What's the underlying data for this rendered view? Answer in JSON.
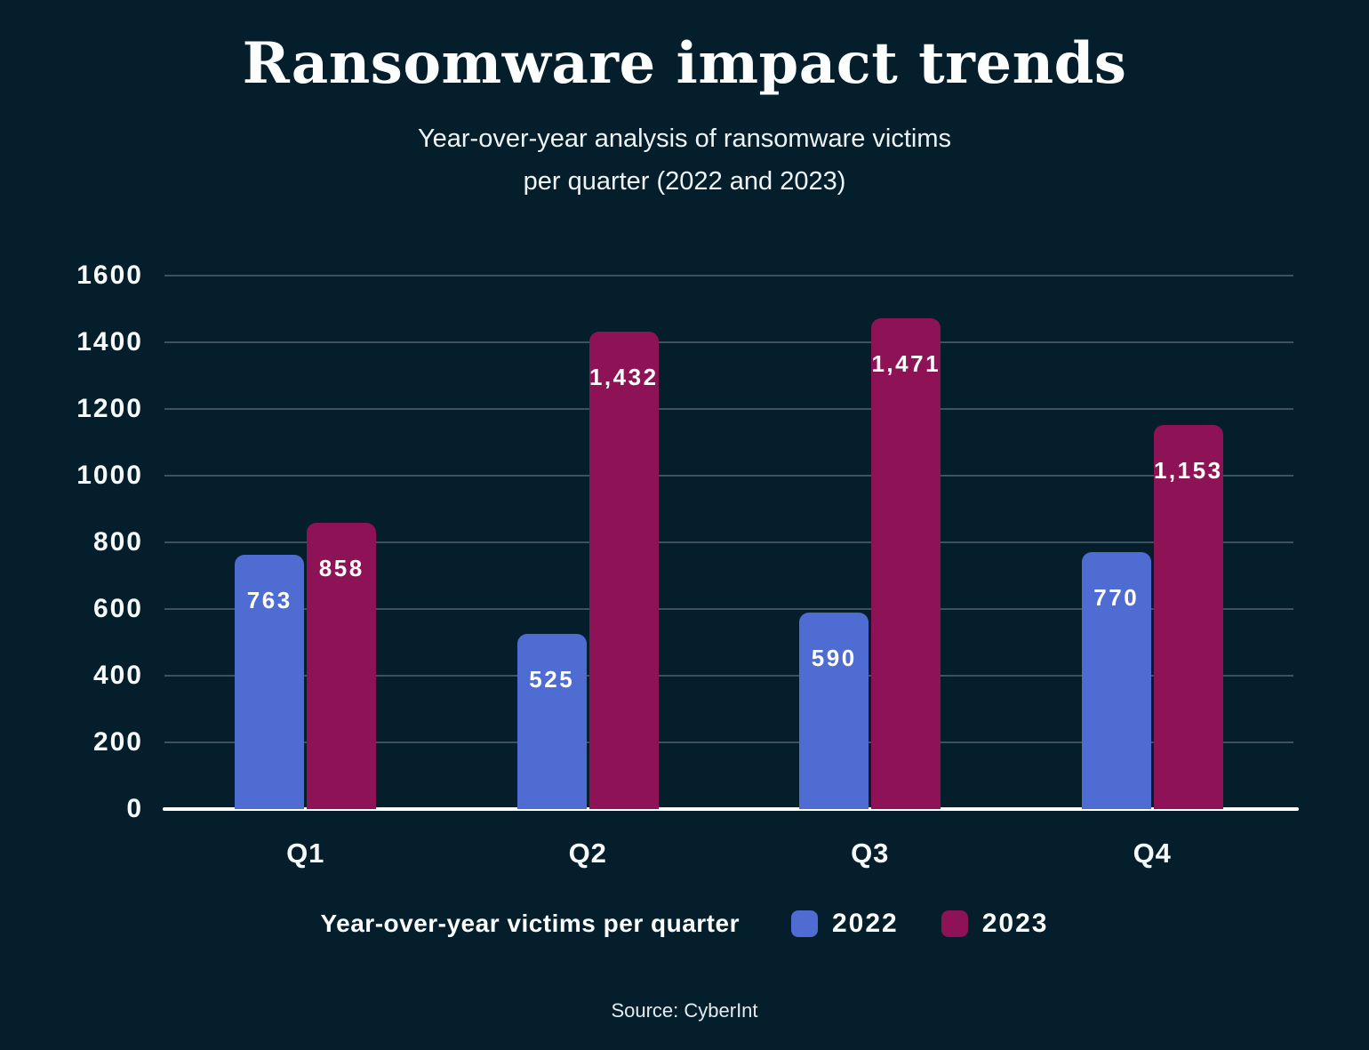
{
  "title": "Ransomware impact trends",
  "subtitle": {
    "lines": [
      "Year-over-year analysis of ransomware victims",
      "per quarter (2022 and 2023)"
    ]
  },
  "legend": {
    "caption": "Year-over-year victims per quarter",
    "items": [
      {
        "label": "2022",
        "color": "#4e6cd2"
      },
      {
        "label": "2023",
        "color": "#8e1356"
      }
    ]
  },
  "source": "Source: CyberInt",
  "colors": {
    "background": "#041e2c",
    "gridline": "#3d525e",
    "axis_line": "#ffffff",
    "text": "#ffffff",
    "series_2022": "#4e6cd2",
    "series_2023": "#8e1356"
  },
  "chart_data": {
    "type": "bar",
    "title": "Ransomware impact trends",
    "subtitle": "Year-over-year analysis of ransomware victims per quarter (2022 and 2023)",
    "categories": [
      "Q1",
      "Q2",
      "Q3",
      "Q4"
    ],
    "series": [
      {
        "name": "2022",
        "color": "#4e6cd2",
        "values": [
          763,
          525,
          590,
          770
        ],
        "value_labels": [
          "763",
          "525",
          "590",
          "770"
        ]
      },
      {
        "name": "2023",
        "color": "#8e1356",
        "values": [
          858,
          1432,
          1471,
          1153
        ],
        "value_labels": [
          "858",
          "1,432",
          "1,471",
          "1,153"
        ]
      }
    ],
    "xlabel": "",
    "ylabel": "",
    "ylim": [
      0,
      1600
    ],
    "yticks": [
      0,
      200,
      400,
      600,
      800,
      1000,
      1200,
      1400,
      1600
    ],
    "grid": true,
    "legend_position": "bottom",
    "value_labels_position": "inside-top"
  }
}
